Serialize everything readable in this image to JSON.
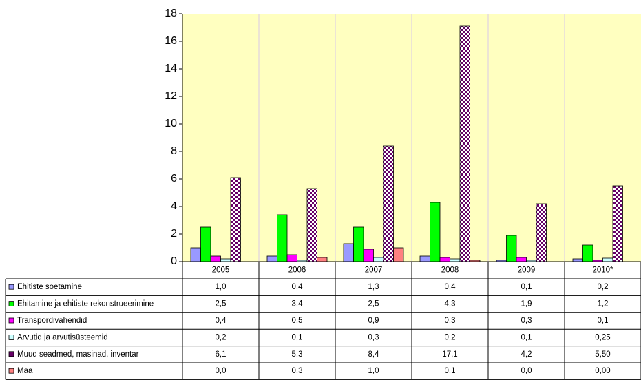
{
  "chart_data": {
    "type": "bar",
    "categories": [
      "2005",
      "2006",
      "2007",
      "2008",
      "2009",
      "2010*"
    ],
    "ylim": [
      0,
      18
    ],
    "yticks": [
      0,
      2,
      4,
      6,
      8,
      10,
      12,
      14,
      16,
      18
    ],
    "series": [
      {
        "name": "Ehitiste soetamine",
        "color": "#9999ff",
        "values": [
          1.0,
          0.4,
          1.3,
          0.4,
          0.1,
          0.2
        ],
        "value_labels": [
          "1,0",
          "0,4",
          "1,3",
          "0,4",
          "0,1",
          "0,2"
        ]
      },
      {
        "name": "Ehitamine ja ehitiste rekonstrueerimine",
        "color": "#00ff00",
        "values": [
          2.5,
          3.4,
          2.5,
          4.3,
          1.9,
          1.2
        ],
        "value_labels": [
          "2,5",
          "3,4",
          "2,5",
          "4,3",
          "1,9",
          "1,2"
        ]
      },
      {
        "name": "Transpordivahendid",
        "color": "#ff00ff",
        "values": [
          0.4,
          0.5,
          0.9,
          0.3,
          0.3,
          0.1
        ],
        "value_labels": [
          "0,4",
          "0,5",
          "0,9",
          "0,3",
          "0,3",
          "0,1"
        ]
      },
      {
        "name": "Arvutid ja arvutisüsteemid",
        "color": "#ccffff",
        "values": [
          0.2,
          0.1,
          0.3,
          0.2,
          0.1,
          0.25
        ],
        "value_labels": [
          "0,2",
          "0,1",
          "0,3",
          "0,2",
          "0,1",
          "0,25"
        ]
      },
      {
        "name": "Muud seadmed, masinad, inventar",
        "color": "#660066",
        "values": [
          6.1,
          5.3,
          8.4,
          17.1,
          4.2,
          5.5
        ],
        "value_labels": [
          "6,1",
          "5,3",
          "8,4",
          "17,1",
          "4,2",
          "5,50"
        ]
      },
      {
        "name": "Maa",
        "color": "#ff8080",
        "values": [
          0.0,
          0.3,
          1.0,
          0.1,
          0.0,
          0.0
        ],
        "value_labels": [
          "0,0",
          "0,3",
          "1,0",
          "0,1",
          "0,0",
          "0,00"
        ]
      }
    ]
  }
}
